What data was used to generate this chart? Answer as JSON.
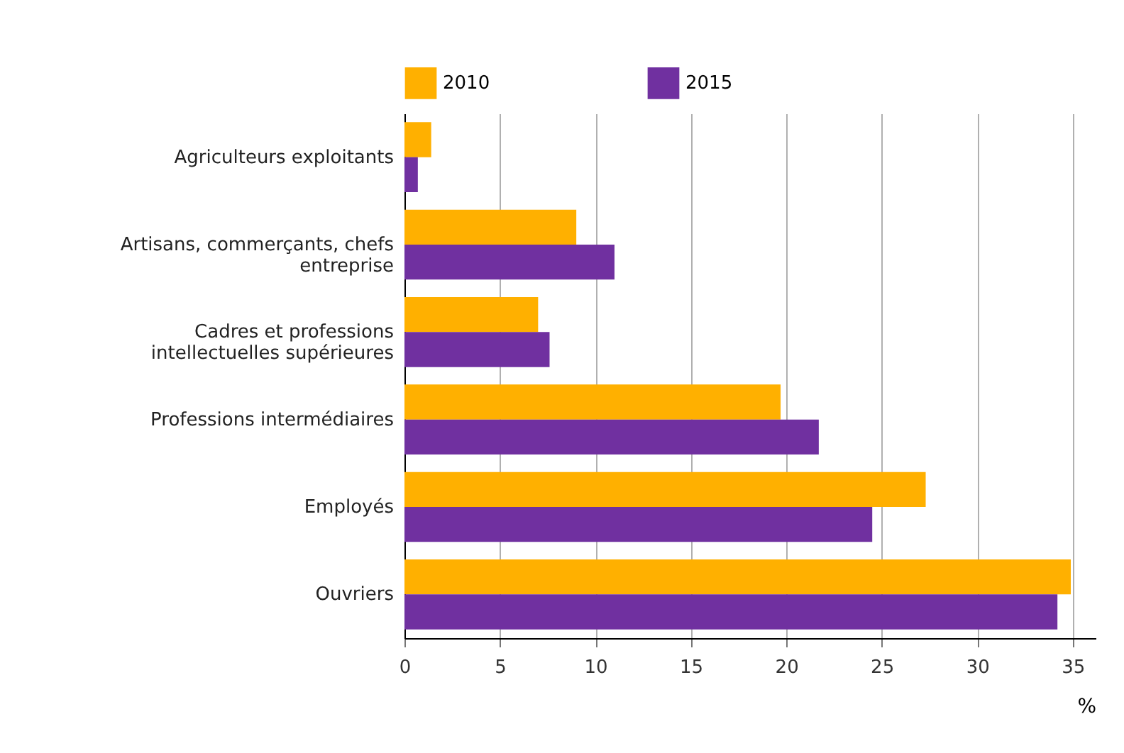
{
  "chart_data": {
    "type": "bar",
    "orientation": "horizontal",
    "xlabel": "%",
    "categories": [
      "Agriculteurs exploitants",
      "Artisans, commerçants, chefs entreprise",
      "Cadres et professions intellectuelles supérieures",
      "Professions intermédiaires",
      "Employés",
      "Ouvriers"
    ],
    "series": [
      {
        "name": "2010",
        "color": "#ffb000",
        "values": [
          1.4,
          9.0,
          7.0,
          19.7,
          27.3,
          34.9
        ]
      },
      {
        "name": "2015",
        "color": "#7030a0",
        "values": [
          0.7,
          11.0,
          7.6,
          21.7,
          24.5,
          34.2
        ]
      }
    ],
    "xlim": [
      0,
      36.2
    ],
    "xticks": [
      0,
      5,
      10,
      15,
      20,
      25,
      30,
      35
    ],
    "grid": "x",
    "legend": "top"
  }
}
